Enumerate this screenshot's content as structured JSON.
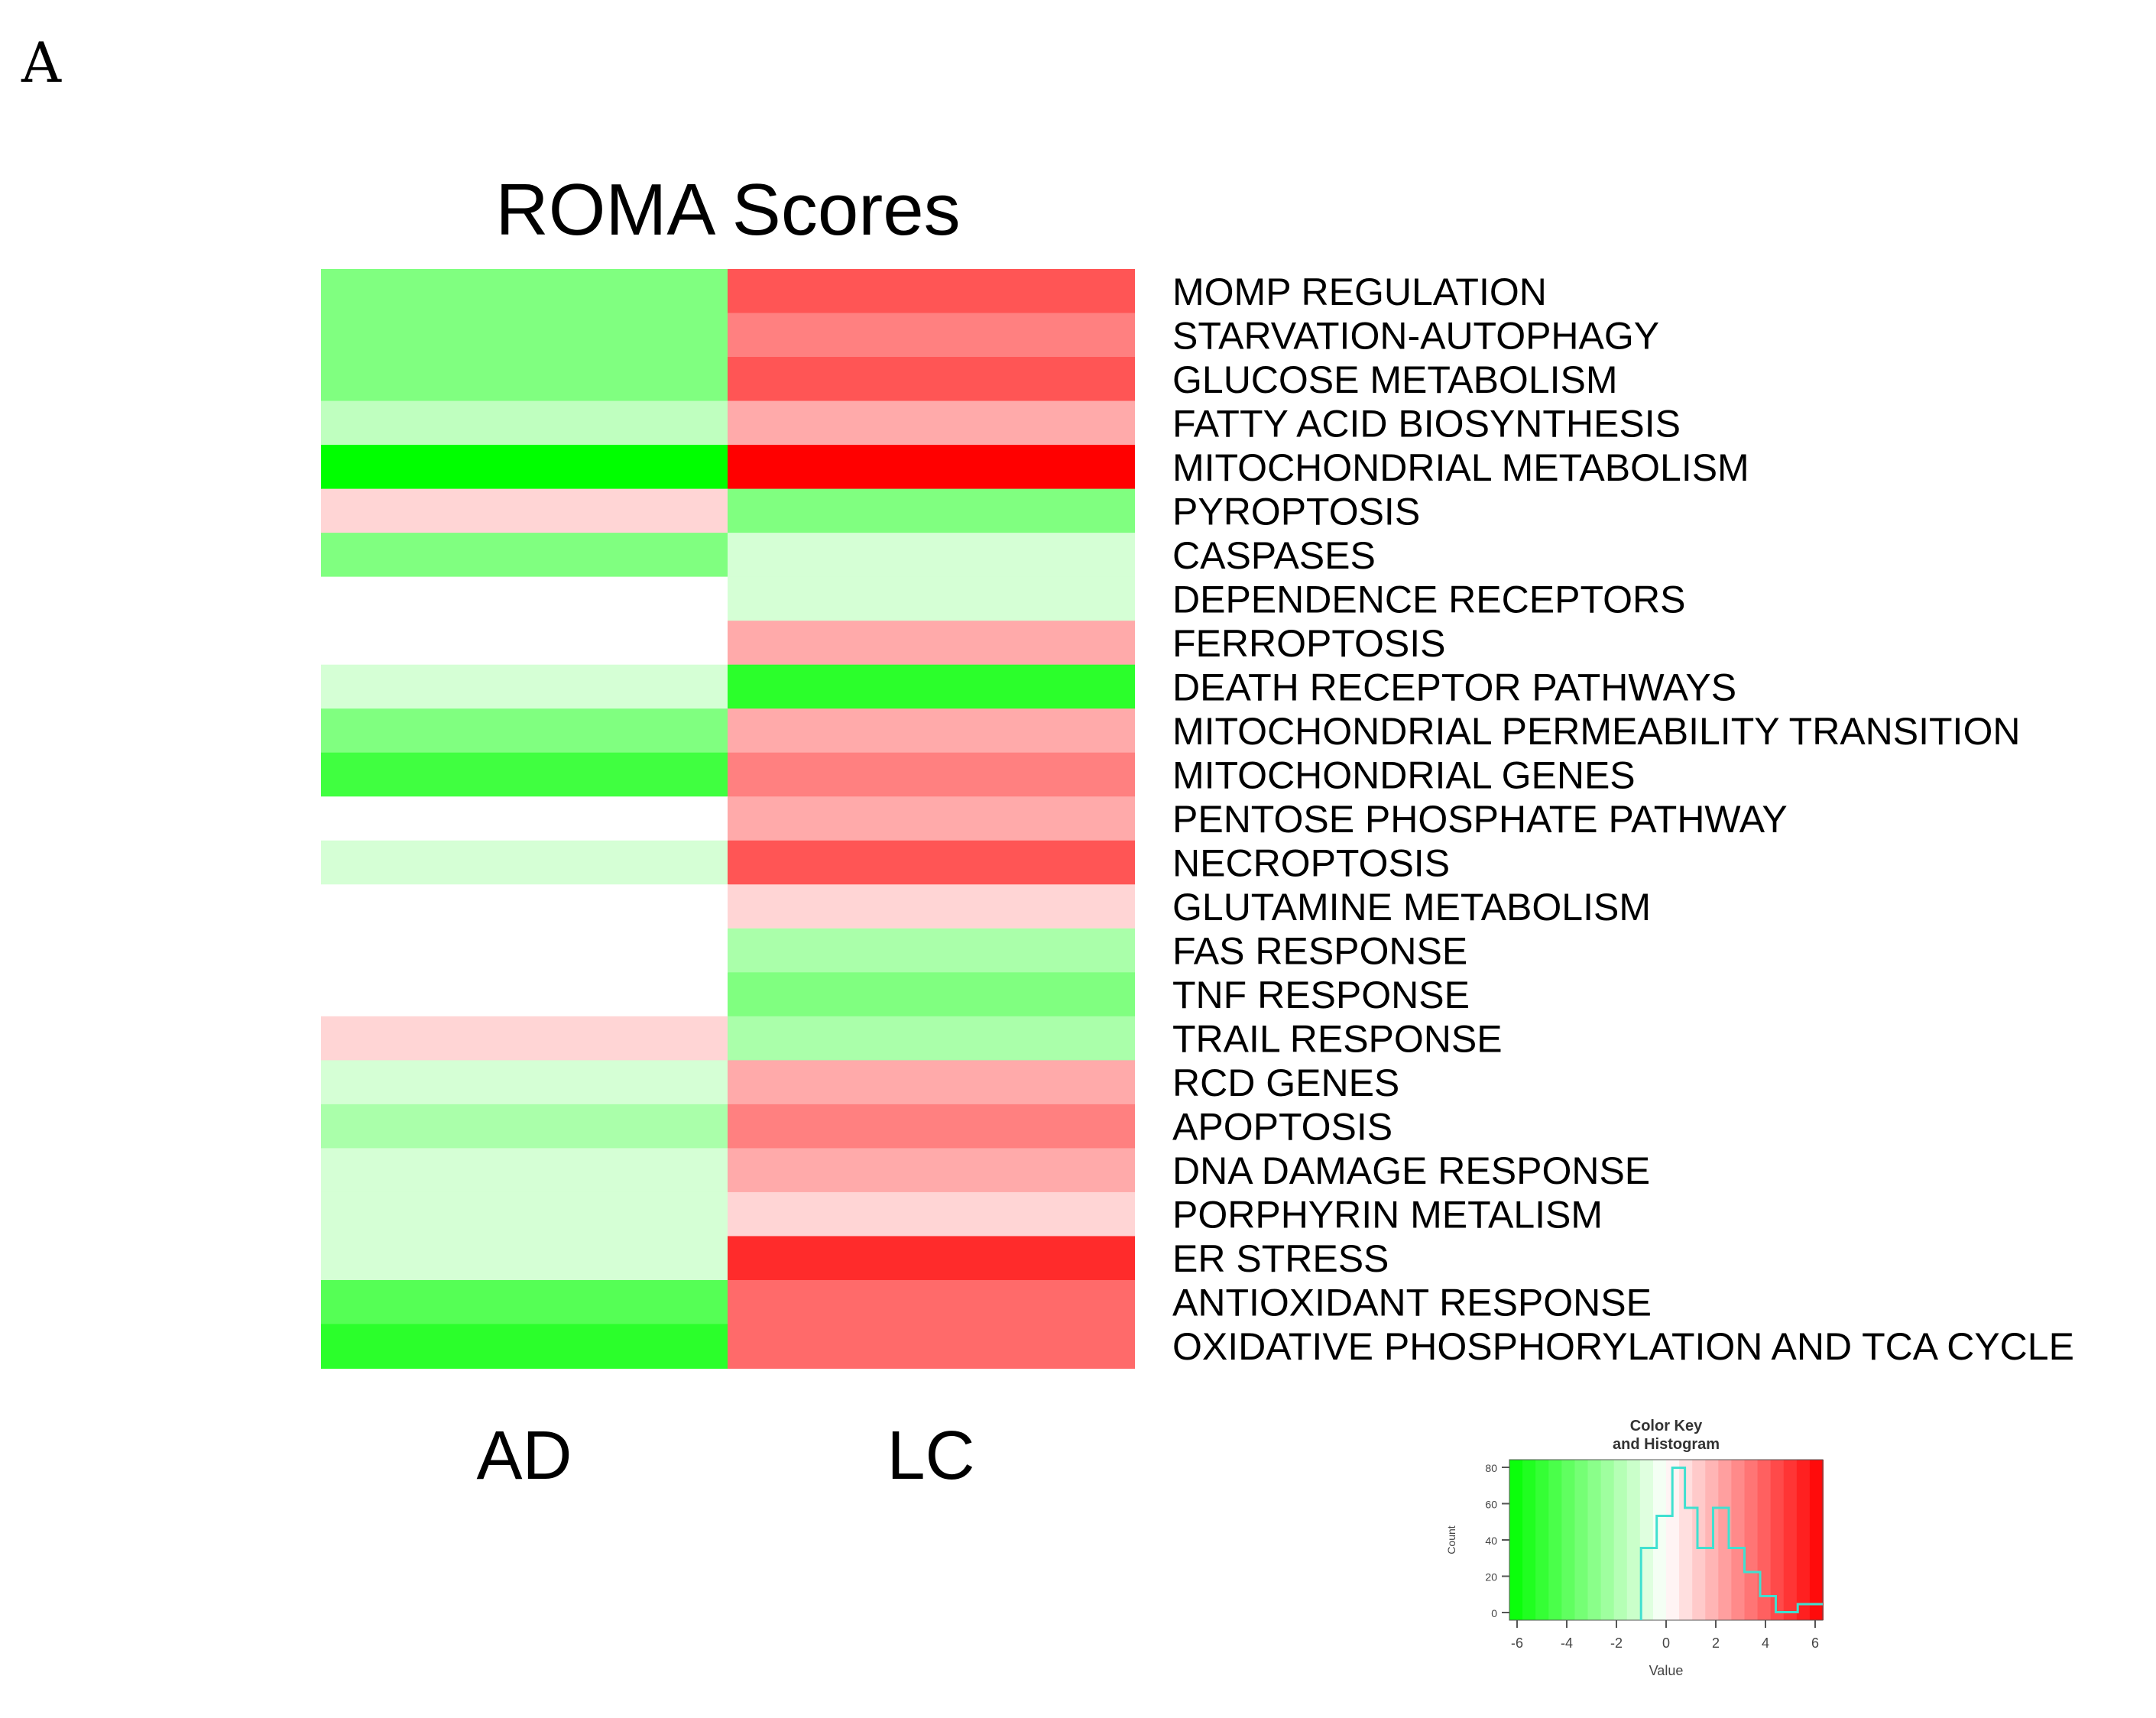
{
  "panel_label": "A",
  "colors": {
    "low": "#00ff00",
    "mid": "#ffffff",
    "high": "#ff0000"
  },
  "chart_data": {
    "type": "heatmap",
    "title": "ROMA Scores",
    "columns": [
      "AD",
      "LC"
    ],
    "rows": [
      "MOMP REGULATION",
      "STARVATION-AUTOPHAGY",
      "GLUCOSE METABOLISM",
      "FATTY ACID BIOSYNTHESIS",
      "MITOCHONDRIAL METABOLISM",
      "PYROPTOSIS",
      "CASPASES",
      "DEPENDENCE RECEPTORS",
      "FERROPTOSIS",
      "DEATH RECEPTOR PATHWAYS",
      "MITOCHONDRIAL PERMEABILITY TRANSITION",
      "MITOCHONDRIAL GENES",
      "PENTOSE PHOSPHATE PATHWAY",
      "NECROPTOSIS",
      "GLUTAMINE METABOLISM",
      "FAS RESPONSE",
      "TNF RESPONSE",
      "TRAIL RESPONSE",
      "RCD GENES",
      "APOPTOSIS",
      "DNA DAMAGE RESPONSE",
      "PORPHYRIN METALISM",
      "ER STRESS",
      "ANTIOXIDANT RESPONSE",
      "OXIDATIVE PHOSPHORYLATION AND TCA CYCLE"
    ],
    "values": [
      [
        -3,
        4
      ],
      [
        -3,
        3
      ],
      [
        -3,
        4
      ],
      [
        -1.5,
        2
      ],
      [
        -6,
        6
      ],
      [
        1,
        -3
      ],
      [
        -3,
        -1
      ],
      [
        0,
        -1
      ],
      [
        0,
        2
      ],
      [
        -1,
        -5
      ],
      [
        -3,
        2
      ],
      [
        -4.5,
        3
      ],
      [
        0,
        2
      ],
      [
        -1,
        4
      ],
      [
        0,
        1
      ],
      [
        0,
        -2
      ],
      [
        0,
        -3
      ],
      [
        1,
        -2
      ],
      [
        -1,
        2
      ],
      [
        -2,
        3
      ],
      [
        -1,
        2
      ],
      [
        -1,
        1
      ],
      [
        -1,
        5
      ],
      [
        -4,
        3.5
      ],
      [
        -5,
        3.5
      ]
    ],
    "color_key": {
      "title_line1": "Color Key",
      "title_line2": "and Histogram",
      "xlabel": "Value",
      "ylabel": "Count",
      "x_ticks": [
        "-6",
        "-4",
        "-2",
        "0",
        "2",
        "4",
        "6"
      ],
      "y_ticks": [
        "80",
        "60",
        "40",
        "20",
        "0"
      ],
      "range": [
        -6,
        6
      ]
    }
  }
}
